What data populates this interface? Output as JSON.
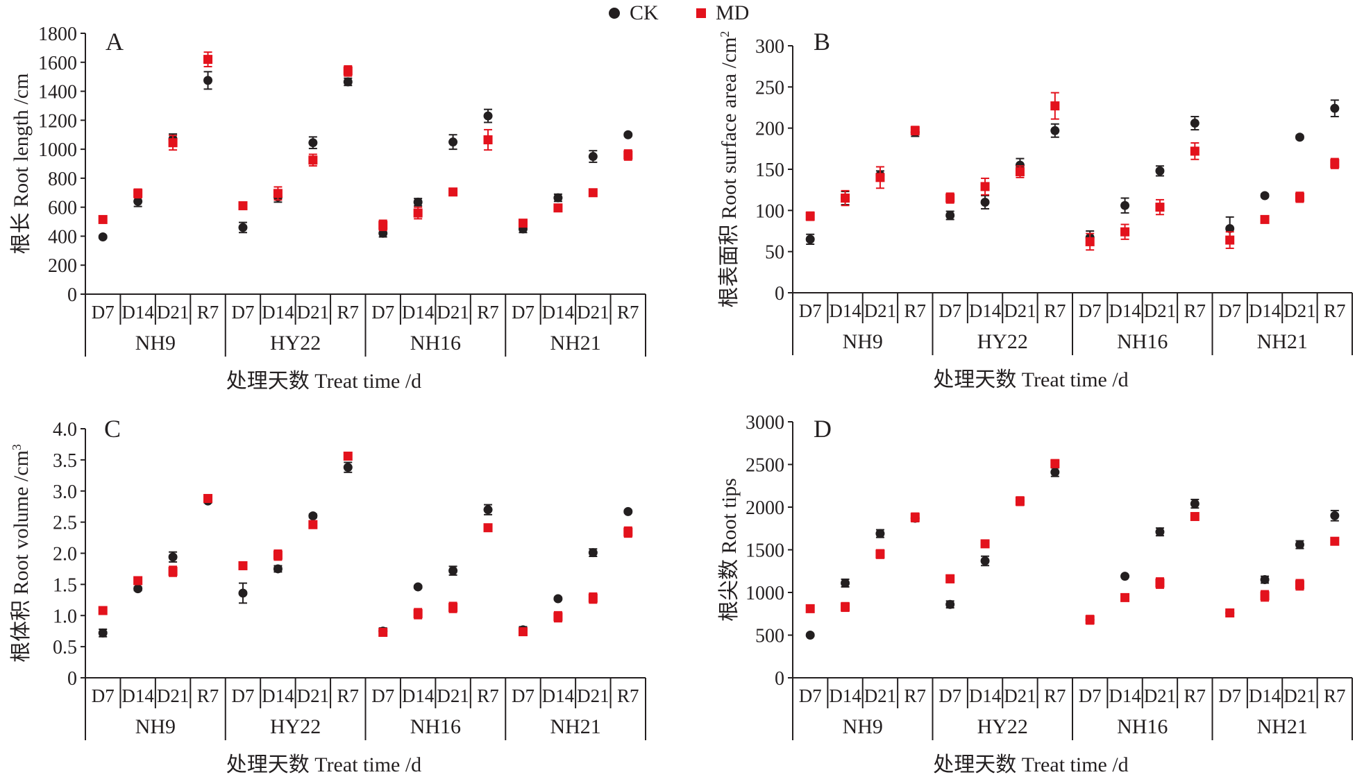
{
  "legend": {
    "ck_label": "CK",
    "md_label": "MD"
  },
  "colors": {
    "CK": "#231f20",
    "MD": "#e3121c",
    "axis": "#231f20"
  },
  "chart_data": [
    {
      "type": "scatter",
      "panel": "A",
      "ylabel": "根长 Root length /cm",
      "xlabel": "处理天数 Treat time /d",
      "ylim": [
        0,
        1800
      ],
      "yticks": [
        0,
        200,
        400,
        600,
        800,
        1000,
        1200,
        1400,
        1600,
        1800
      ],
      "ytick_labels": [
        "0",
        "200",
        "400",
        "600",
        "800",
        "1000",
        "1200",
        "1400",
        "1600",
        "1800"
      ],
      "groups": [
        "NH9",
        "HY22",
        "NH16",
        "NH21"
      ],
      "categories": [
        "D7",
        "D14",
        "D21",
        "R7"
      ],
      "series": [
        {
          "name": "CK",
          "values": [
            [
              395,
              640,
              1070,
              1475
            ],
            [
              460,
              670,
              1045,
              1465
            ],
            [
              420,
              635,
              1050,
              1230
            ],
            [
              450,
              665,
              950,
              1100
            ]
          ],
          "errors": [
            [
              10,
              35,
              35,
              60
            ],
            [
              35,
              35,
              40,
              25
            ],
            [
              25,
              25,
              50,
              45
            ],
            [
              25,
              25,
              40,
              10
            ]
          ]
        },
        {
          "name": "MD",
          "values": [
            [
              515,
              695,
              1045,
              1620
            ],
            [
              610,
              695,
              925,
              1540
            ],
            [
              475,
              560,
              705,
              1065
            ],
            [
              490,
              595,
              700,
              960
            ]
          ],
          "errors": [
            [
              15,
              30,
              50,
              50
            ],
            [
              15,
              45,
              40,
              35
            ],
            [
              35,
              40,
              15,
              70
            ],
            [
              15,
              15,
              15,
              35
            ]
          ]
        }
      ]
    },
    {
      "type": "scatter",
      "panel": "B",
      "ylabel": "根表面积 Root surface area /cm",
      "ylabel_sup": "2",
      "xlabel": "处理天数 Treat time /d",
      "ylim": [
        0,
        300
      ],
      "yticks": [
        0,
        50,
        100,
        150,
        200,
        250,
        300
      ],
      "ytick_labels": [
        "0",
        "50",
        "100",
        "150",
        "200",
        "250",
        "300"
      ],
      "groups": [
        "NH9",
        "HY22",
        "NH16",
        "NH21"
      ],
      "categories": [
        "D7",
        "D14",
        "D21",
        "R7"
      ],
      "series": [
        {
          "name": "CK",
          "values": [
            [
              65,
              115,
              143,
              195
            ],
            [
              94,
              110,
              155,
              197
            ],
            [
              67,
              106,
              148,
              206
            ],
            [
              78,
              118,
              189,
              224
            ]
          ],
          "errors": [
            [
              6,
              8,
              5,
              5
            ],
            [
              5,
              8,
              8,
              8
            ],
            [
              8,
              9,
              6,
              8
            ],
            [
              14,
              2,
              2,
              10
            ]
          ]
        },
        {
          "name": "MD",
          "values": [
            [
              93,
              115,
              140,
              197
            ],
            [
              115,
              129,
              147,
              227
            ],
            [
              62,
              74,
              104,
              172
            ],
            [
              64,
              89,
              116,
              157
            ]
          ],
          "errors": [
            [
              5,
              9,
              13,
              5
            ],
            [
              6,
              10,
              7,
              16
            ],
            [
              10,
              9,
              9,
              10
            ],
            [
              10,
              2,
              6,
              6
            ]
          ]
        }
      ]
    },
    {
      "type": "scatter",
      "panel": "C",
      "ylabel": "根体积 Root volume /cm",
      "ylabel_sup": "3",
      "xlabel": "处理天数 Treat time /d",
      "ylim": [
        0,
        4.0
      ],
      "yticks": [
        0,
        0.5,
        1.0,
        1.5,
        2.0,
        2.5,
        3.0,
        3.5,
        4.0
      ],
      "ytick_labels": [
        "0",
        "0.5",
        "1.0",
        "1.5",
        "2.0",
        "2.5",
        "3.0",
        "3.5",
        "4.0"
      ],
      "groups": [
        "NH9",
        "HY22",
        "NH16",
        "NH21"
      ],
      "categories": [
        "D7",
        "D14",
        "D21",
        "R7"
      ],
      "series": [
        {
          "name": "CK",
          "values": [
            [
              0.72,
              1.43,
              1.94,
              2.84
            ],
            [
              1.36,
              1.75,
              2.6,
              3.38
            ],
            [
              0.75,
              1.46,
              1.72,
              2.7
            ],
            [
              0.77,
              1.27,
              2.01,
              2.67
            ]
          ],
          "errors": [
            [
              0.06,
              0.03,
              0.08,
              0.03
            ],
            [
              0.16,
              0.05,
              0.03,
              0.08
            ],
            [
              0.05,
              0.02,
              0.07,
              0.08
            ],
            [
              0.05,
              0.02,
              0.06,
              0.02
            ]
          ]
        },
        {
          "name": "MD",
          "values": [
            [
              1.08,
              1.56,
              1.71,
              2.88
            ],
            [
              1.8,
              1.97,
              2.46,
              3.56
            ],
            [
              0.73,
              1.03,
              1.13,
              2.41
            ],
            [
              0.74,
              0.98,
              1.28,
              2.34
            ]
          ],
          "errors": [
            [
              0.05,
              0.06,
              0.08,
              0.05
            ],
            [
              0.06,
              0.08,
              0.06,
              0.05
            ],
            [
              0.06,
              0.08,
              0.08,
              0.03
            ],
            [
              0.04,
              0.08,
              0.08,
              0.08
            ]
          ]
        }
      ]
    },
    {
      "type": "scatter",
      "panel": "D",
      "ylabel": "根尖数 Root tips",
      "xlabel": "处理天数 Treat time /d",
      "ylim": [
        0,
        3000
      ],
      "yticks": [
        0,
        500,
        1000,
        1500,
        2000,
        2500,
        3000
      ],
      "ytick_labels": [
        "0",
        "500",
        "1000",
        "1500",
        "2000",
        "2500",
        "3000"
      ],
      "groups": [
        "NH9",
        "HY22",
        "NH16",
        "NH21"
      ],
      "categories": [
        "D7",
        "D14",
        "D21",
        "R7"
      ],
      "series": [
        {
          "name": "CK",
          "values": [
            [
              500,
              1110,
              1690,
              1870
            ],
            [
              860,
              1370,
              2070,
              2410
            ],
            [
              680,
              1190,
              1710,
              2040
            ],
            [
              760,
              1150,
              1560,
              1900
            ]
          ],
          "errors": [
            [
              10,
              45,
              45,
              40
            ],
            [
              40,
              55,
              45,
              50
            ],
            [
              40,
              10,
              45,
              50
            ],
            [
              35,
              40,
              45,
              60
            ]
          ]
        },
        {
          "name": "MD",
          "values": [
            [
              810,
              830,
              1450,
              1880
            ],
            [
              1160,
              1570,
              2070,
              2510
            ],
            [
              680,
              940,
              1110,
              1890
            ],
            [
              760,
              960,
              1090,
              1600
            ]
          ],
          "errors": [
            [
              25,
              50,
              50,
              50
            ],
            [
              45,
              20,
              50,
              45
            ],
            [
              50,
              15,
              60,
              25
            ],
            [
              35,
              60,
              60,
              40
            ]
          ]
        }
      ]
    }
  ]
}
